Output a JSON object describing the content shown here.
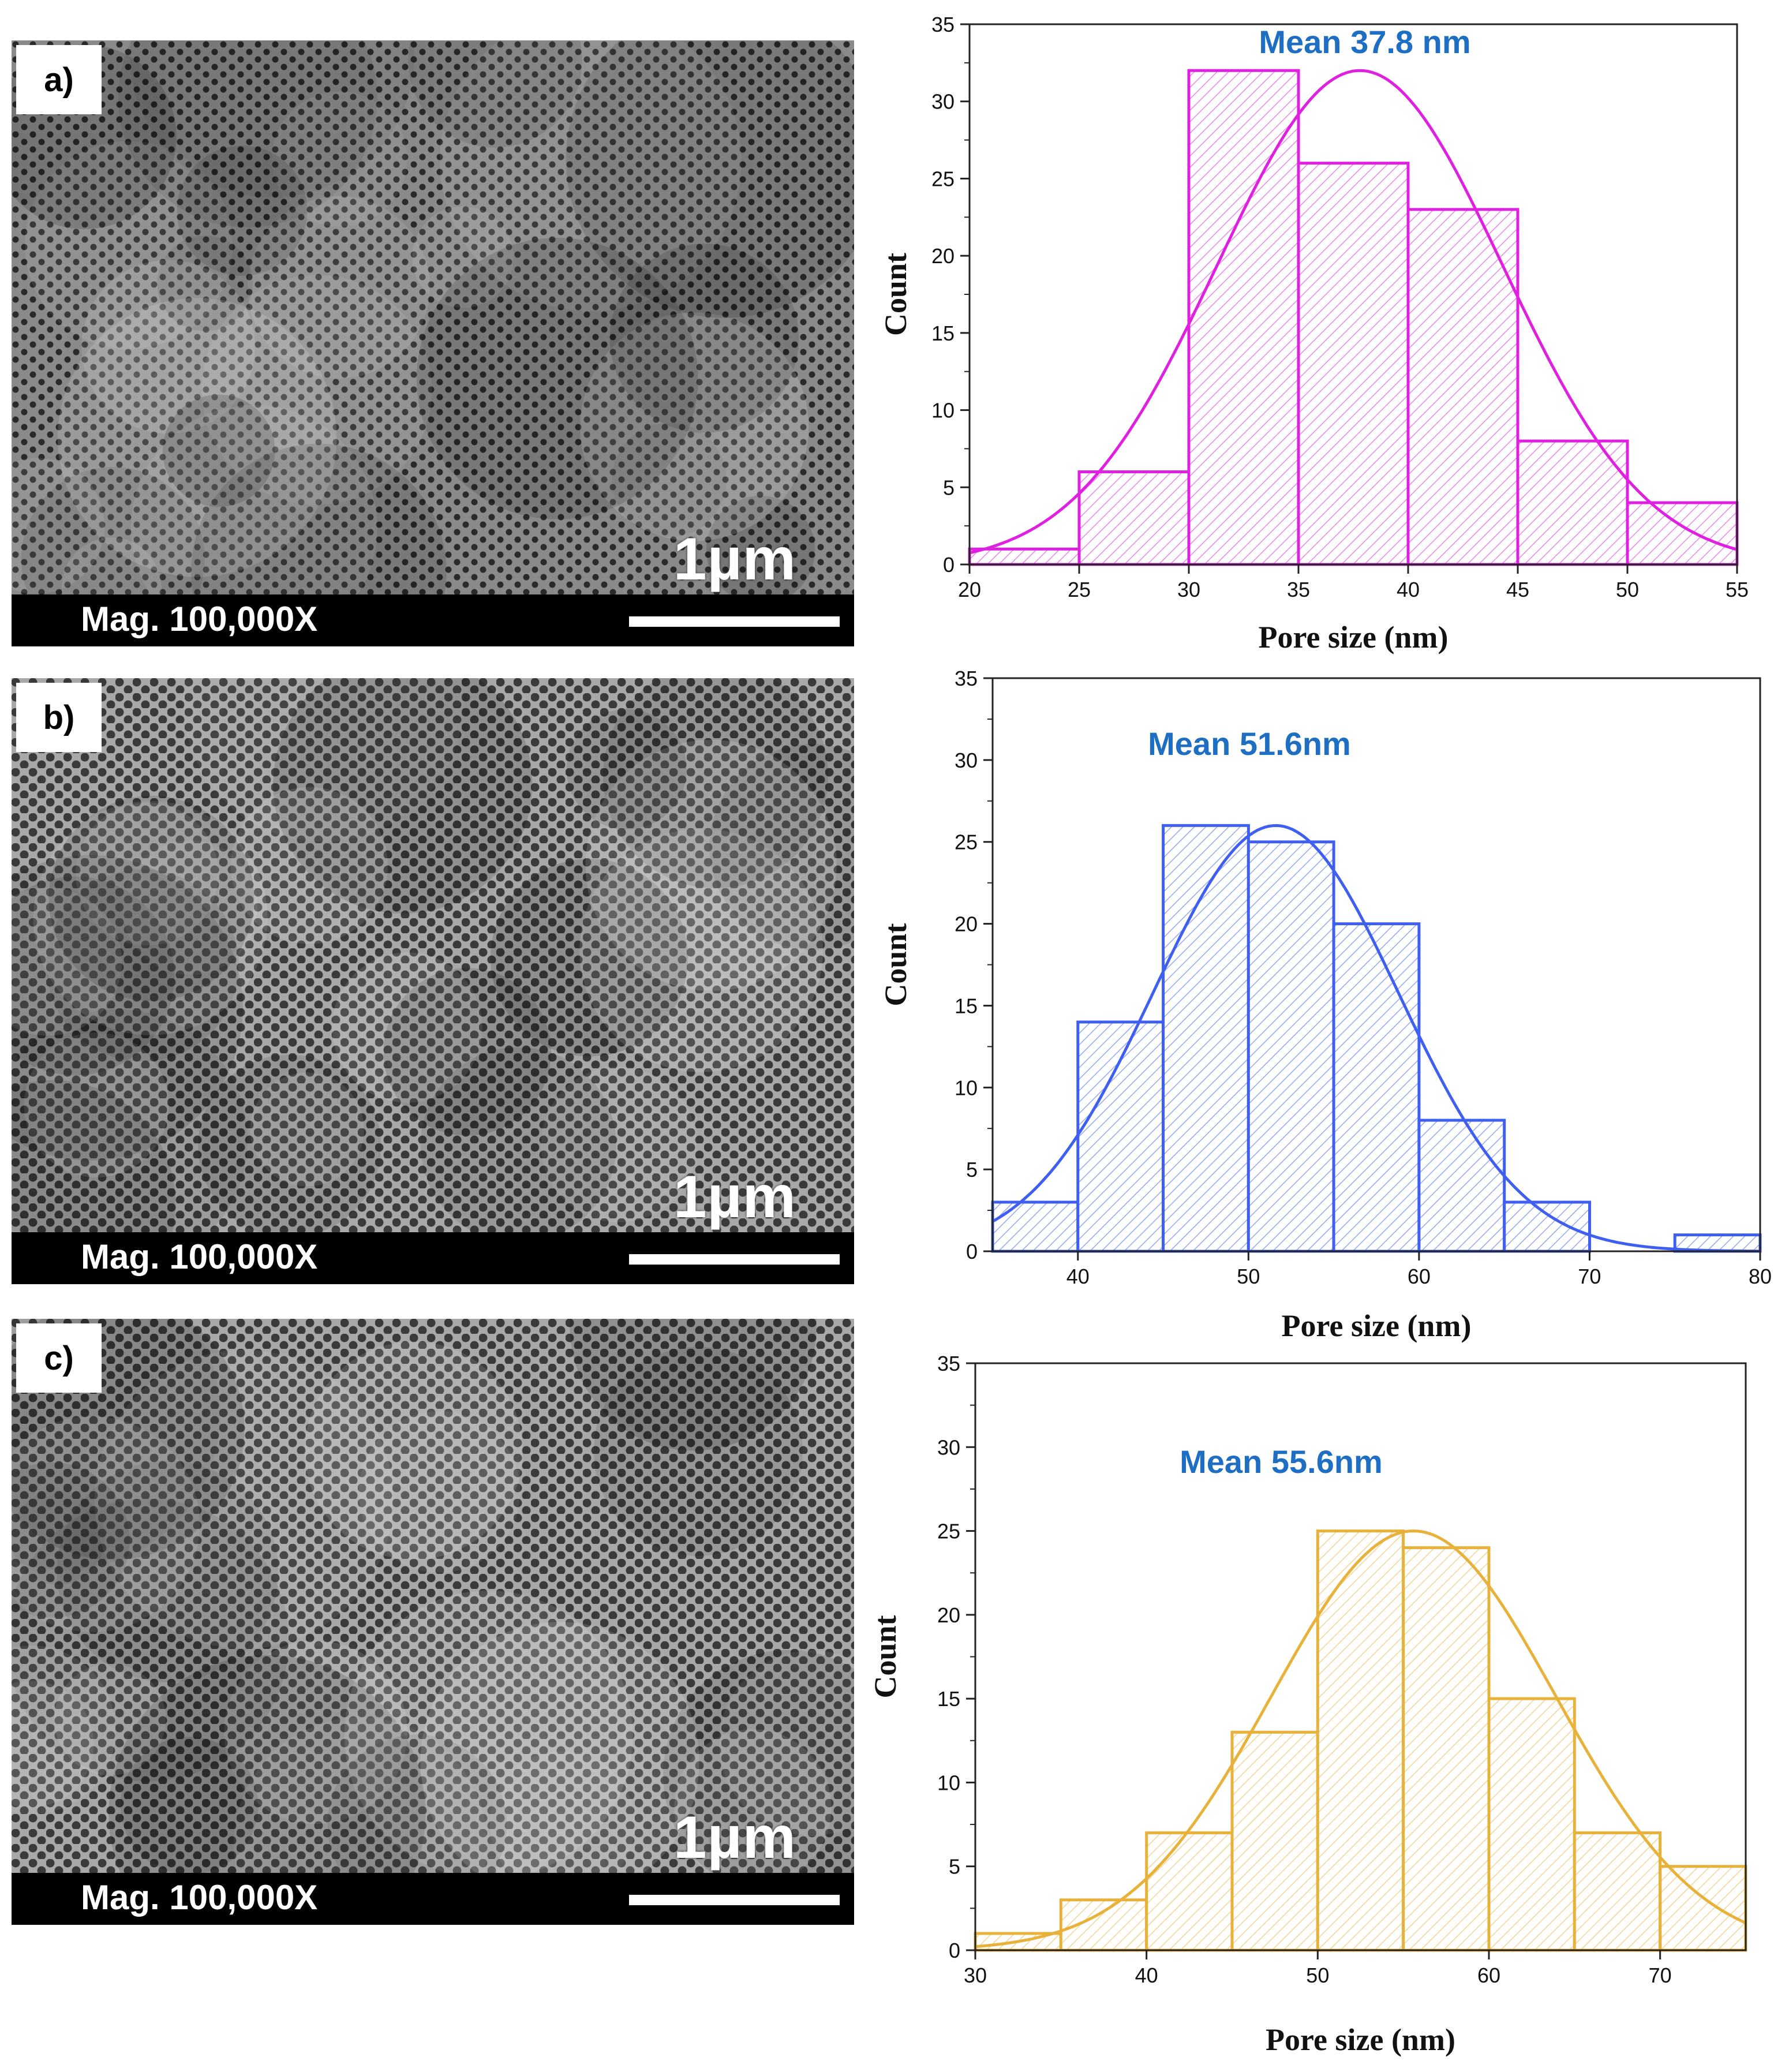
{
  "panels": [
    {
      "label": "a)",
      "scale_text": "1µm",
      "mag_text": "Mag. 100,000X",
      "micro_tone": "dark"
    },
    {
      "label": "b)",
      "scale_text": "1µm",
      "mag_text": "Mag. 100,000X",
      "micro_tone": "light"
    },
    {
      "label": "c)",
      "scale_text": "1µm",
      "mag_text": "Mag. 100,000X",
      "micro_tone": "light"
    }
  ],
  "chart_data": [
    {
      "type": "bar",
      "subtype": "histogram_with_normal_fit",
      "color": "#e020e0",
      "annotation": "Mean 37.8 nm",
      "annotation_color": "#1e6fc4",
      "xlabel": "Pore size (nm)",
      "ylabel": "Count",
      "xlim": [
        20,
        55
      ],
      "ylim": [
        0,
        35
      ],
      "xticks": [
        20,
        25,
        30,
        35,
        40,
        45,
        50,
        55
      ],
      "yticks": [
        0,
        5,
        10,
        15,
        20,
        25,
        30,
        35
      ],
      "bins": [
        {
          "start": 20,
          "end": 25,
          "count": 1
        },
        {
          "start": 25,
          "end": 30,
          "count": 6
        },
        {
          "start": 30,
          "end": 35,
          "count": 32
        },
        {
          "start": 35,
          "end": 40,
          "count": 26
        },
        {
          "start": 40,
          "end": 45,
          "count": 23
        },
        {
          "start": 45,
          "end": 50,
          "count": 8
        },
        {
          "start": 50,
          "end": 55,
          "count": 4
        }
      ],
      "fit": {
        "mean": 37.8,
        "sd": 6.5,
        "peak": 32
      }
    },
    {
      "type": "bar",
      "subtype": "histogram_with_normal_fit",
      "color": "#3f5ff0",
      "annotation": "Mean 51.6nm",
      "annotation_color": "#1e6fc4",
      "xlabel": "Pore size (nm)",
      "ylabel": "Count",
      "xlim": [
        35,
        80
      ],
      "ylim": [
        0,
        35
      ],
      "xticks": [
        40,
        50,
        60,
        70,
        80
      ],
      "yticks": [
        0,
        5,
        10,
        15,
        20,
        25,
        30,
        35
      ],
      "bins": [
        {
          "start": 35,
          "end": 40,
          "count": 3
        },
        {
          "start": 40,
          "end": 45,
          "count": 14
        },
        {
          "start": 45,
          "end": 50,
          "count": 26
        },
        {
          "start": 50,
          "end": 55,
          "count": 25
        },
        {
          "start": 55,
          "end": 60,
          "count": 20
        },
        {
          "start": 60,
          "end": 65,
          "count": 8
        },
        {
          "start": 65,
          "end": 70,
          "count": 3
        },
        {
          "start": 70,
          "end": 75,
          "count": 0
        },
        {
          "start": 75,
          "end": 80,
          "count": 1
        }
      ],
      "fit": {
        "mean": 51.6,
        "sd": 7.2,
        "peak": 26
      }
    },
    {
      "type": "bar",
      "subtype": "histogram_with_normal_fit",
      "color": "#e8b23a",
      "annotation": "Mean 55.6nm",
      "annotation_color": "#1e6fc4",
      "xlabel": "Pore size (nm)",
      "ylabel": "Count",
      "xlim": [
        30,
        75
      ],
      "ylim": [
        0,
        35
      ],
      "xticks": [
        30,
        40,
        50,
        60,
        70
      ],
      "yticks": [
        0,
        5,
        10,
        15,
        20,
        25,
        30,
        35
      ],
      "bins": [
        {
          "start": 30,
          "end": 35,
          "count": 1
        },
        {
          "start": 35,
          "end": 40,
          "count": 3
        },
        {
          "start": 40,
          "end": 45,
          "count": 7
        },
        {
          "start": 45,
          "end": 50,
          "count": 13
        },
        {
          "start": 50,
          "end": 55,
          "count": 25
        },
        {
          "start": 55,
          "end": 60,
          "count": 24
        },
        {
          "start": 60,
          "end": 65,
          "count": 15
        },
        {
          "start": 65,
          "end": 70,
          "count": 7
        },
        {
          "start": 70,
          "end": 75,
          "count": 5
        }
      ],
      "fit": {
        "mean": 55.6,
        "sd": 8.3,
        "peak": 25
      }
    }
  ]
}
